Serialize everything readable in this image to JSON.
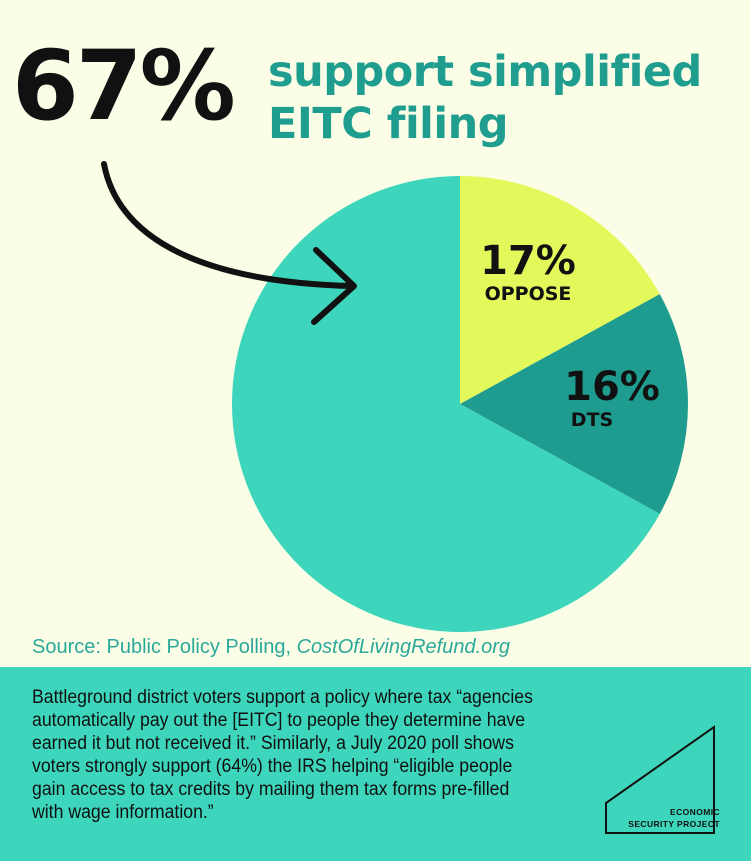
{
  "headline": {
    "big_number": "67%",
    "line1": "support simplified",
    "line2": "EITC filing"
  },
  "chart_data": {
    "type": "pie",
    "title": "",
    "slices": [
      {
        "label": "OPPOSE",
        "pct_label": "17%",
        "value": 17,
        "color": "#e3f95b"
      },
      {
        "label": "DTS",
        "pct_label": "16%",
        "value": 16,
        "color": "#1e9c8f"
      },
      {
        "label": "",
        "pct_label": "",
        "value": 67,
        "color": "#3dd6bc"
      }
    ],
    "start_angle": "12 o'clock, clockwise"
  },
  "source": {
    "prefix": "Source: Public Policy Polling, ",
    "site": "CostOfLivingRefund.org"
  },
  "body_lines": [
    "Battleground district voters support a policy where tax “agencies",
    "automatically pay out the [EITC] to people they determine have",
    "earned it but not received it.” Similarly, a July 2020 poll shows",
    "voters strongly support (64%) the IRS helping “eligible people",
    "gain access to tax credits by mailing them tax forms pre-filled",
    "with wage information.”"
  ],
  "logo": {
    "line1": "ECONOMIC",
    "line2": "SECURITY PROJECT"
  },
  "colors": {
    "background": "#fbfde6",
    "teal": "#3dd6bc",
    "dark_teal": "#1e9c8f",
    "yellow": "#e3f95b",
    "headline_teal": "#1f9e90"
  }
}
